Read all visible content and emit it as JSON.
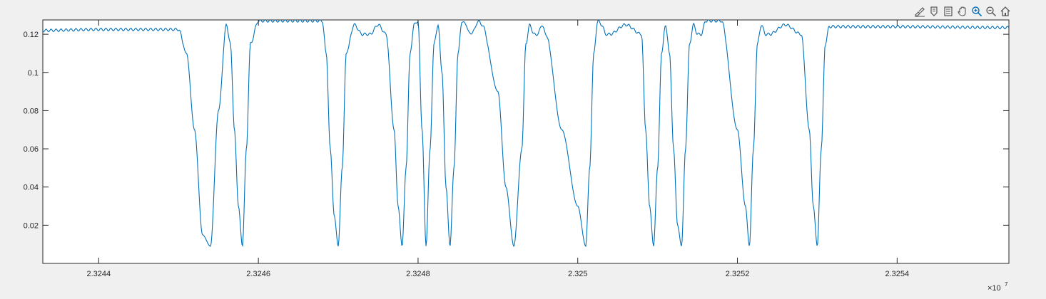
{
  "toolbar": {
    "buttons": [
      {
        "name": "brush-icon",
        "title": "Brush"
      },
      {
        "name": "datatip-icon",
        "title": "Data Tips"
      },
      {
        "name": "legend-icon",
        "title": "Insert Legend"
      },
      {
        "name": "pan-icon",
        "title": "Pan"
      },
      {
        "name": "zoom-in-icon",
        "title": "Zoom In"
      },
      {
        "name": "zoom-out-icon",
        "title": "Zoom Out"
      },
      {
        "name": "home-icon",
        "title": "Restore View"
      }
    ]
  },
  "colors": {
    "line": "#0072bd",
    "axes_bg": "#ffffff",
    "figure_bg": "#f0f0f0",
    "axis": "#262626",
    "active_tool": "#0072bd"
  },
  "chart_data": {
    "type": "line",
    "title": "",
    "xlabel": "",
    "ylabel": "",
    "xlim": [
      23243300,
      23255400
    ],
    "ylim": [
      0.0,
      0.1275
    ],
    "x_exponent_label": "×10",
    "x_exponent_power": "7",
    "x_ticks": [
      23244000,
      23246000,
      23248000,
      23250000,
      23252000,
      23254000
    ],
    "x_tick_labels": [
      "2.3244",
      "2.3246",
      "2.3248",
      "2.325",
      "2.3252",
      "2.3254"
    ],
    "y_ticks": [
      0.02,
      0.04,
      0.06,
      0.08,
      0.1,
      0.12
    ],
    "y_tick_labels": [
      "0.02",
      "0.04",
      "0.06",
      "0.08",
      "0.1",
      "0.12"
    ],
    "grid": false,
    "series": [
      {
        "color": "#0072bd",
        "x": [
          23243300,
          23244000,
          23245000,
          23245100,
          23245200,
          23245300,
          23245400,
          23245500,
          23245600,
          23245650,
          23245700,
          23245750,
          23245800,
          23245850,
          23245900,
          23246000,
          23246100,
          23246800,
          23246850,
          23246900,
          23246950,
          23247000,
          23247050,
          23247100,
          23247200,
          23247300,
          23247400,
          23247500,
          23247600,
          23247700,
          23247750,
          23247800,
          23247850,
          23247900,
          23247950,
          23248000,
          23248050,
          23248100,
          23248150,
          23248200,
          23248250,
          23248300,
          23248350,
          23248400,
          23248450,
          23248500,
          23248550,
          23248600,
          23248650,
          23248700,
          23248750,
          23248800,
          23249000,
          23249100,
          23249200,
          23249300,
          23249350,
          23249400,
          23249450,
          23249500,
          23249550,
          23249600,
          23249800,
          23250000,
          23250100,
          23250150,
          23250200,
          23250250,
          23250300,
          23250350,
          23250400,
          23250600,
          23250800,
          23250850,
          23250900,
          23250950,
          23251000,
          23251050,
          23251100,
          23251150,
          23251200,
          23251250,
          23251300,
          23251350,
          23251400,
          23251450,
          23251500,
          23251550,
          23251600,
          23251800,
          23252000,
          23252100,
          23252150,
          23252200,
          23252250,
          23252300,
          23252350,
          23252400,
          23252600,
          23252800,
          23252900,
          23252950,
          23253000,
          23253050,
          23253100,
          23253150,
          23253200,
          23254000,
          23255400
        ],
        "y": [
          0.122,
          0.1225,
          0.1225,
          0.11,
          0.07,
          0.015,
          0.009,
          0.08,
          0.125,
          0.115,
          0.07,
          0.03,
          0.009,
          0.06,
          0.115,
          0.127,
          0.127,
          0.127,
          0.11,
          0.06,
          0.025,
          0.009,
          0.05,
          0.11,
          0.125,
          0.12,
          0.12,
          0.125,
          0.12,
          0.07,
          0.03,
          0.009,
          0.05,
          0.11,
          0.125,
          0.127,
          0.07,
          0.009,
          0.06,
          0.115,
          0.125,
          0.1,
          0.04,
          0.009,
          0.05,
          0.11,
          0.127,
          0.125,
          0.12,
          0.122,
          0.127,
          0.125,
          0.09,
          0.04,
          0.009,
          0.06,
          0.115,
          0.125,
          0.12,
          0.12,
          0.125,
          0.12,
          0.07,
          0.03,
          0.009,
          0.05,
          0.11,
          0.127,
          0.125,
          0.12,
          0.12,
          0.125,
          0.12,
          0.07,
          0.03,
          0.009,
          0.05,
          0.11,
          0.125,
          0.11,
          0.06,
          0.02,
          0.009,
          0.06,
          0.115,
          0.125,
          0.12,
          0.12,
          0.127,
          0.127,
          0.07,
          0.03,
          0.009,
          0.06,
          0.115,
          0.125,
          0.12,
          0.12,
          0.125,
          0.12,
          0.07,
          0.03,
          0.009,
          0.06,
          0.115,
          0.124,
          0.124,
          0.124,
          0.1235
        ]
      }
    ]
  }
}
